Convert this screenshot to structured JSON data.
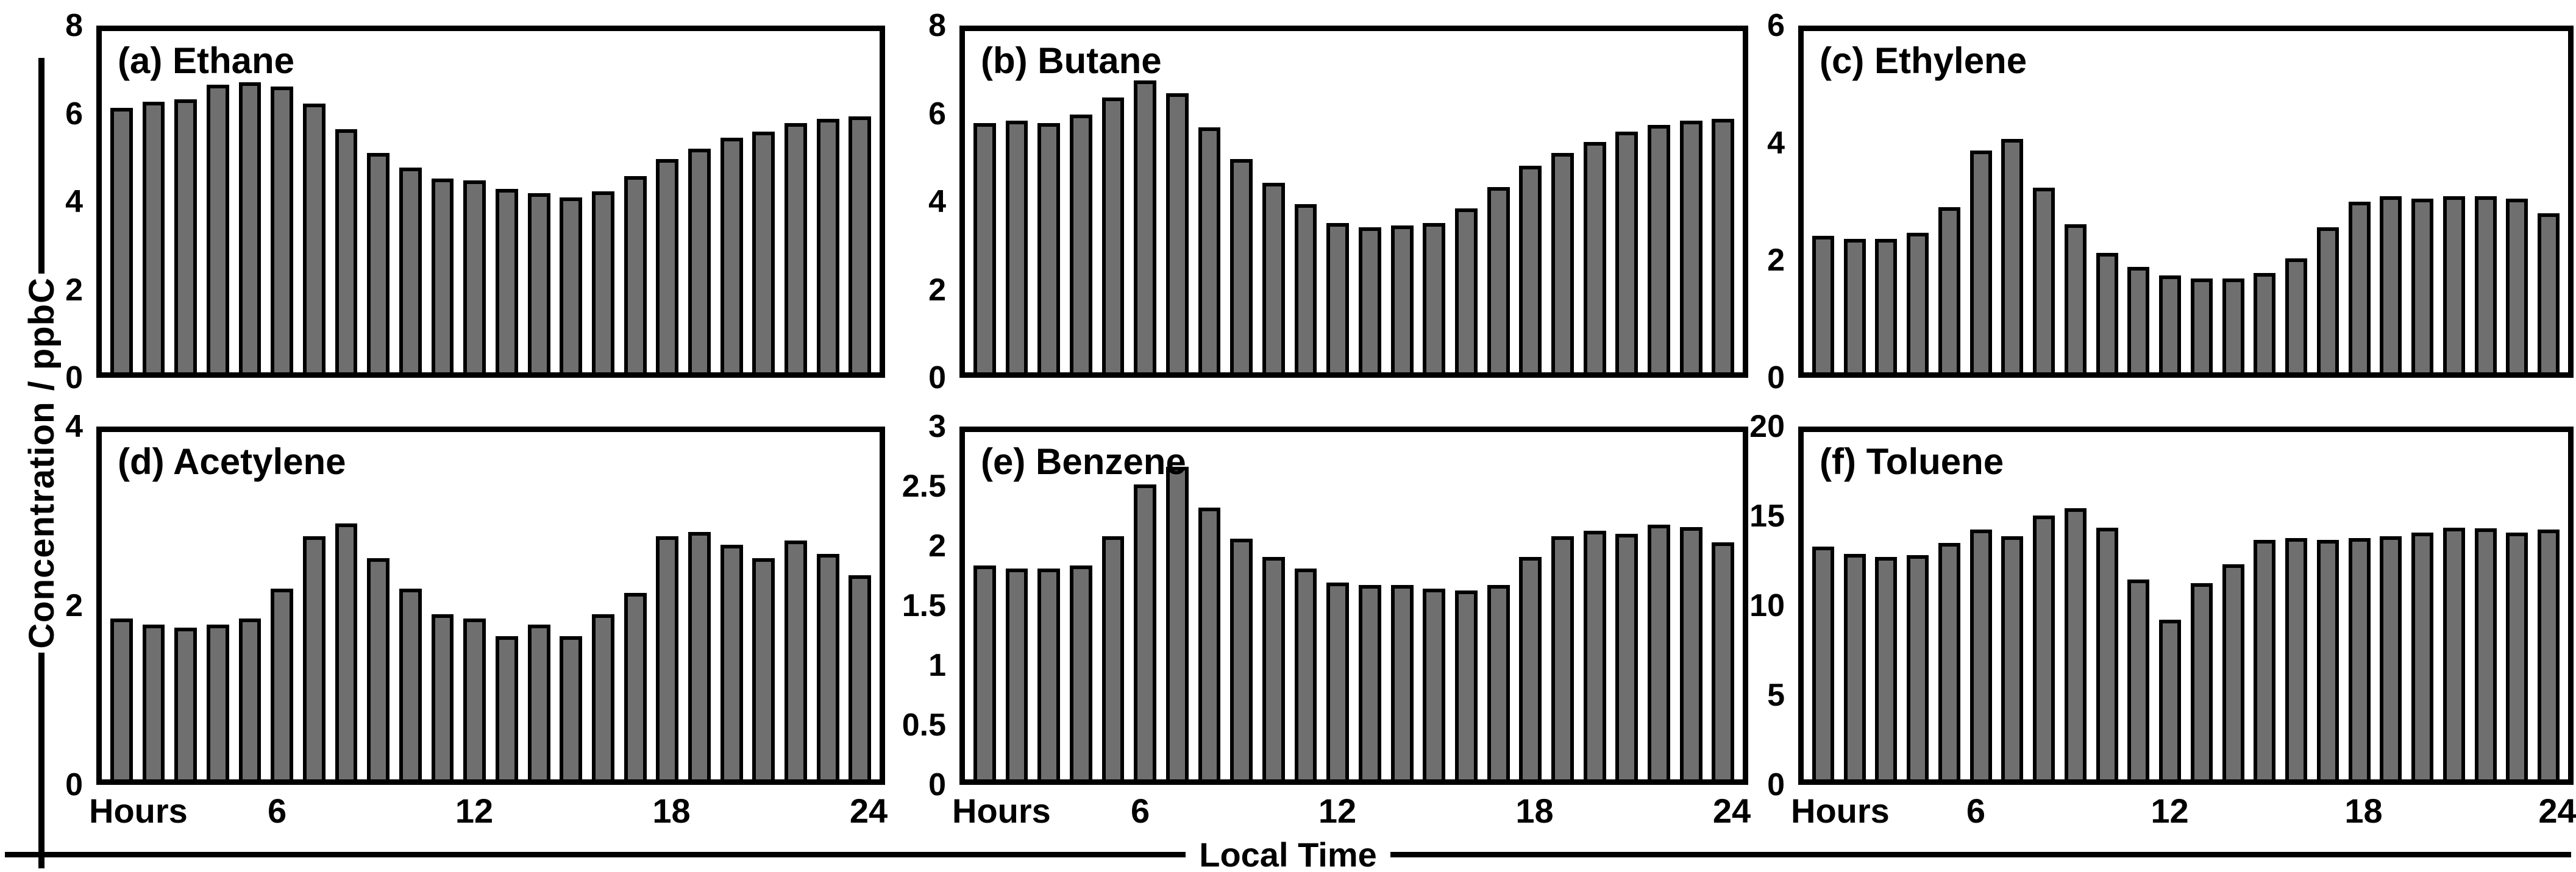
{
  "figure": {
    "y_axis_label": "Concentration / ppbC",
    "x_axis_label": "Local Time",
    "hours_label": "Hours",
    "bar_fill_color": "#6f6f6f",
    "bar_border_color": "#000000"
  },
  "chart_data": [
    {
      "type": "bar",
      "panel": "a",
      "title": "(a) Ethane",
      "ylim": [
        0,
        8
      ],
      "yticks": [
        "8",
        "6",
        "4",
        "2",
        "0"
      ],
      "xticks": [
        6,
        12,
        18,
        24
      ],
      "show_x_labels": false,
      "categories": [
        1,
        2,
        3,
        4,
        5,
        6,
        7,
        8,
        9,
        10,
        11,
        12,
        13,
        14,
        15,
        16,
        17,
        18,
        19,
        20,
        21,
        22,
        23,
        24
      ],
      "values": [
        6.2,
        6.35,
        6.4,
        6.75,
        6.8,
        6.7,
        6.3,
        5.7,
        5.15,
        4.8,
        4.55,
        4.5,
        4.3,
        4.2,
        4.1,
        4.25,
        4.6,
        5.0,
        5.25,
        5.5,
        5.65,
        5.85,
        5.95,
        6.0
      ]
    },
    {
      "type": "bar",
      "panel": "b",
      "title": "(b) Butane",
      "ylim": [
        0,
        8
      ],
      "yticks": [
        "8",
        "6",
        "4",
        "2",
        "0"
      ],
      "xticks": [
        6,
        12,
        18,
        24
      ],
      "show_x_labels": false,
      "categories": [
        1,
        2,
        3,
        4,
        5,
        6,
        7,
        8,
        9,
        10,
        11,
        12,
        13,
        14,
        15,
        16,
        17,
        18,
        19,
        20,
        21,
        22,
        23,
        24
      ],
      "values": [
        5.85,
        5.9,
        5.85,
        6.05,
        6.45,
        6.85,
        6.55,
        5.75,
        5.0,
        4.45,
        3.95,
        3.5,
        3.4,
        3.45,
        3.5,
        3.85,
        4.35,
        4.85,
        5.15,
        5.4,
        5.65,
        5.8,
        5.9,
        5.95
      ]
    },
    {
      "type": "bar",
      "panel": "c",
      "title": "(c) Ethylene",
      "ylim": [
        0,
        6
      ],
      "yticks": [
        "6",
        "4",
        "2",
        "0"
      ],
      "xticks": [
        6,
        12,
        18,
        24
      ],
      "show_x_labels": false,
      "categories": [
        1,
        2,
        3,
        4,
        5,
        6,
        7,
        8,
        9,
        10,
        11,
        12,
        13,
        14,
        15,
        16,
        17,
        18,
        19,
        20,
        21,
        22,
        23,
        24
      ],
      "values": [
        2.4,
        2.35,
        2.35,
        2.45,
        2.9,
        3.9,
        4.1,
        3.25,
        2.6,
        2.1,
        1.85,
        1.7,
        1.65,
        1.65,
        1.75,
        2.0,
        2.55,
        3.0,
        3.1,
        3.05,
        3.1,
        3.1,
        3.05,
        2.8
      ]
    },
    {
      "type": "bar",
      "panel": "d",
      "title": "(d) Acetylene",
      "ylim": [
        0,
        4
      ],
      "yticks": [
        "4",
        "2",
        "0"
      ],
      "xticks": [
        6,
        12,
        18,
        24
      ],
      "show_x_labels": true,
      "categories": [
        1,
        2,
        3,
        4,
        5,
        6,
        7,
        8,
        9,
        10,
        11,
        12,
        13,
        14,
        15,
        16,
        17,
        18,
        19,
        20,
        21,
        22,
        23,
        24
      ],
      "values": [
        1.85,
        1.78,
        1.75,
        1.78,
        1.85,
        2.2,
        2.8,
        2.95,
        2.55,
        2.2,
        1.9,
        1.85,
        1.65,
        1.78,
        1.65,
        1.9,
        2.15,
        2.8,
        2.85,
        2.7,
        2.55,
        2.75,
        2.6,
        2.35
      ]
    },
    {
      "type": "bar",
      "panel": "e",
      "title": "(e) Benzene",
      "ylim": [
        0,
        3
      ],
      "yticks": [
        "3",
        "2.5",
        "2",
        "1.5",
        "1",
        "0.5",
        "0"
      ],
      "xticks": [
        6,
        12,
        18,
        24
      ],
      "show_x_labels": true,
      "categories": [
        1,
        2,
        3,
        4,
        5,
        6,
        7,
        8,
        9,
        10,
        11,
        12,
        13,
        14,
        15,
        16,
        17,
        18,
        19,
        20,
        21,
        22,
        23,
        24
      ],
      "values": [
        1.85,
        1.82,
        1.82,
        1.85,
        2.1,
        2.55,
        2.7,
        2.35,
        2.08,
        1.92,
        1.82,
        1.7,
        1.68,
        1.68,
        1.65,
        1.63,
        1.68,
        1.92,
        2.1,
        2.15,
        2.12,
        2.2,
        2.18,
        2.05
      ]
    },
    {
      "type": "bar",
      "panel": "f",
      "title": "(f) Toluene",
      "ylim": [
        0,
        20
      ],
      "yticks": [
        "20",
        "15",
        "10",
        "5",
        "0"
      ],
      "xticks": [
        6,
        12,
        18,
        24
      ],
      "show_x_labels": true,
      "categories": [
        1,
        2,
        3,
        4,
        5,
        6,
        7,
        8,
        9,
        10,
        11,
        12,
        13,
        14,
        15,
        16,
        17,
        18,
        19,
        20,
        21,
        22,
        23,
        24
      ],
      "values": [
        13.4,
        13.0,
        12.8,
        12.9,
        13.6,
        14.4,
        14.0,
        15.2,
        15.6,
        14.5,
        11.5,
        9.2,
        11.3,
        12.4,
        13.8,
        13.9,
        13.8,
        13.9,
        14.0,
        14.2,
        14.5,
        14.45,
        14.2,
        14.4
      ]
    }
  ]
}
